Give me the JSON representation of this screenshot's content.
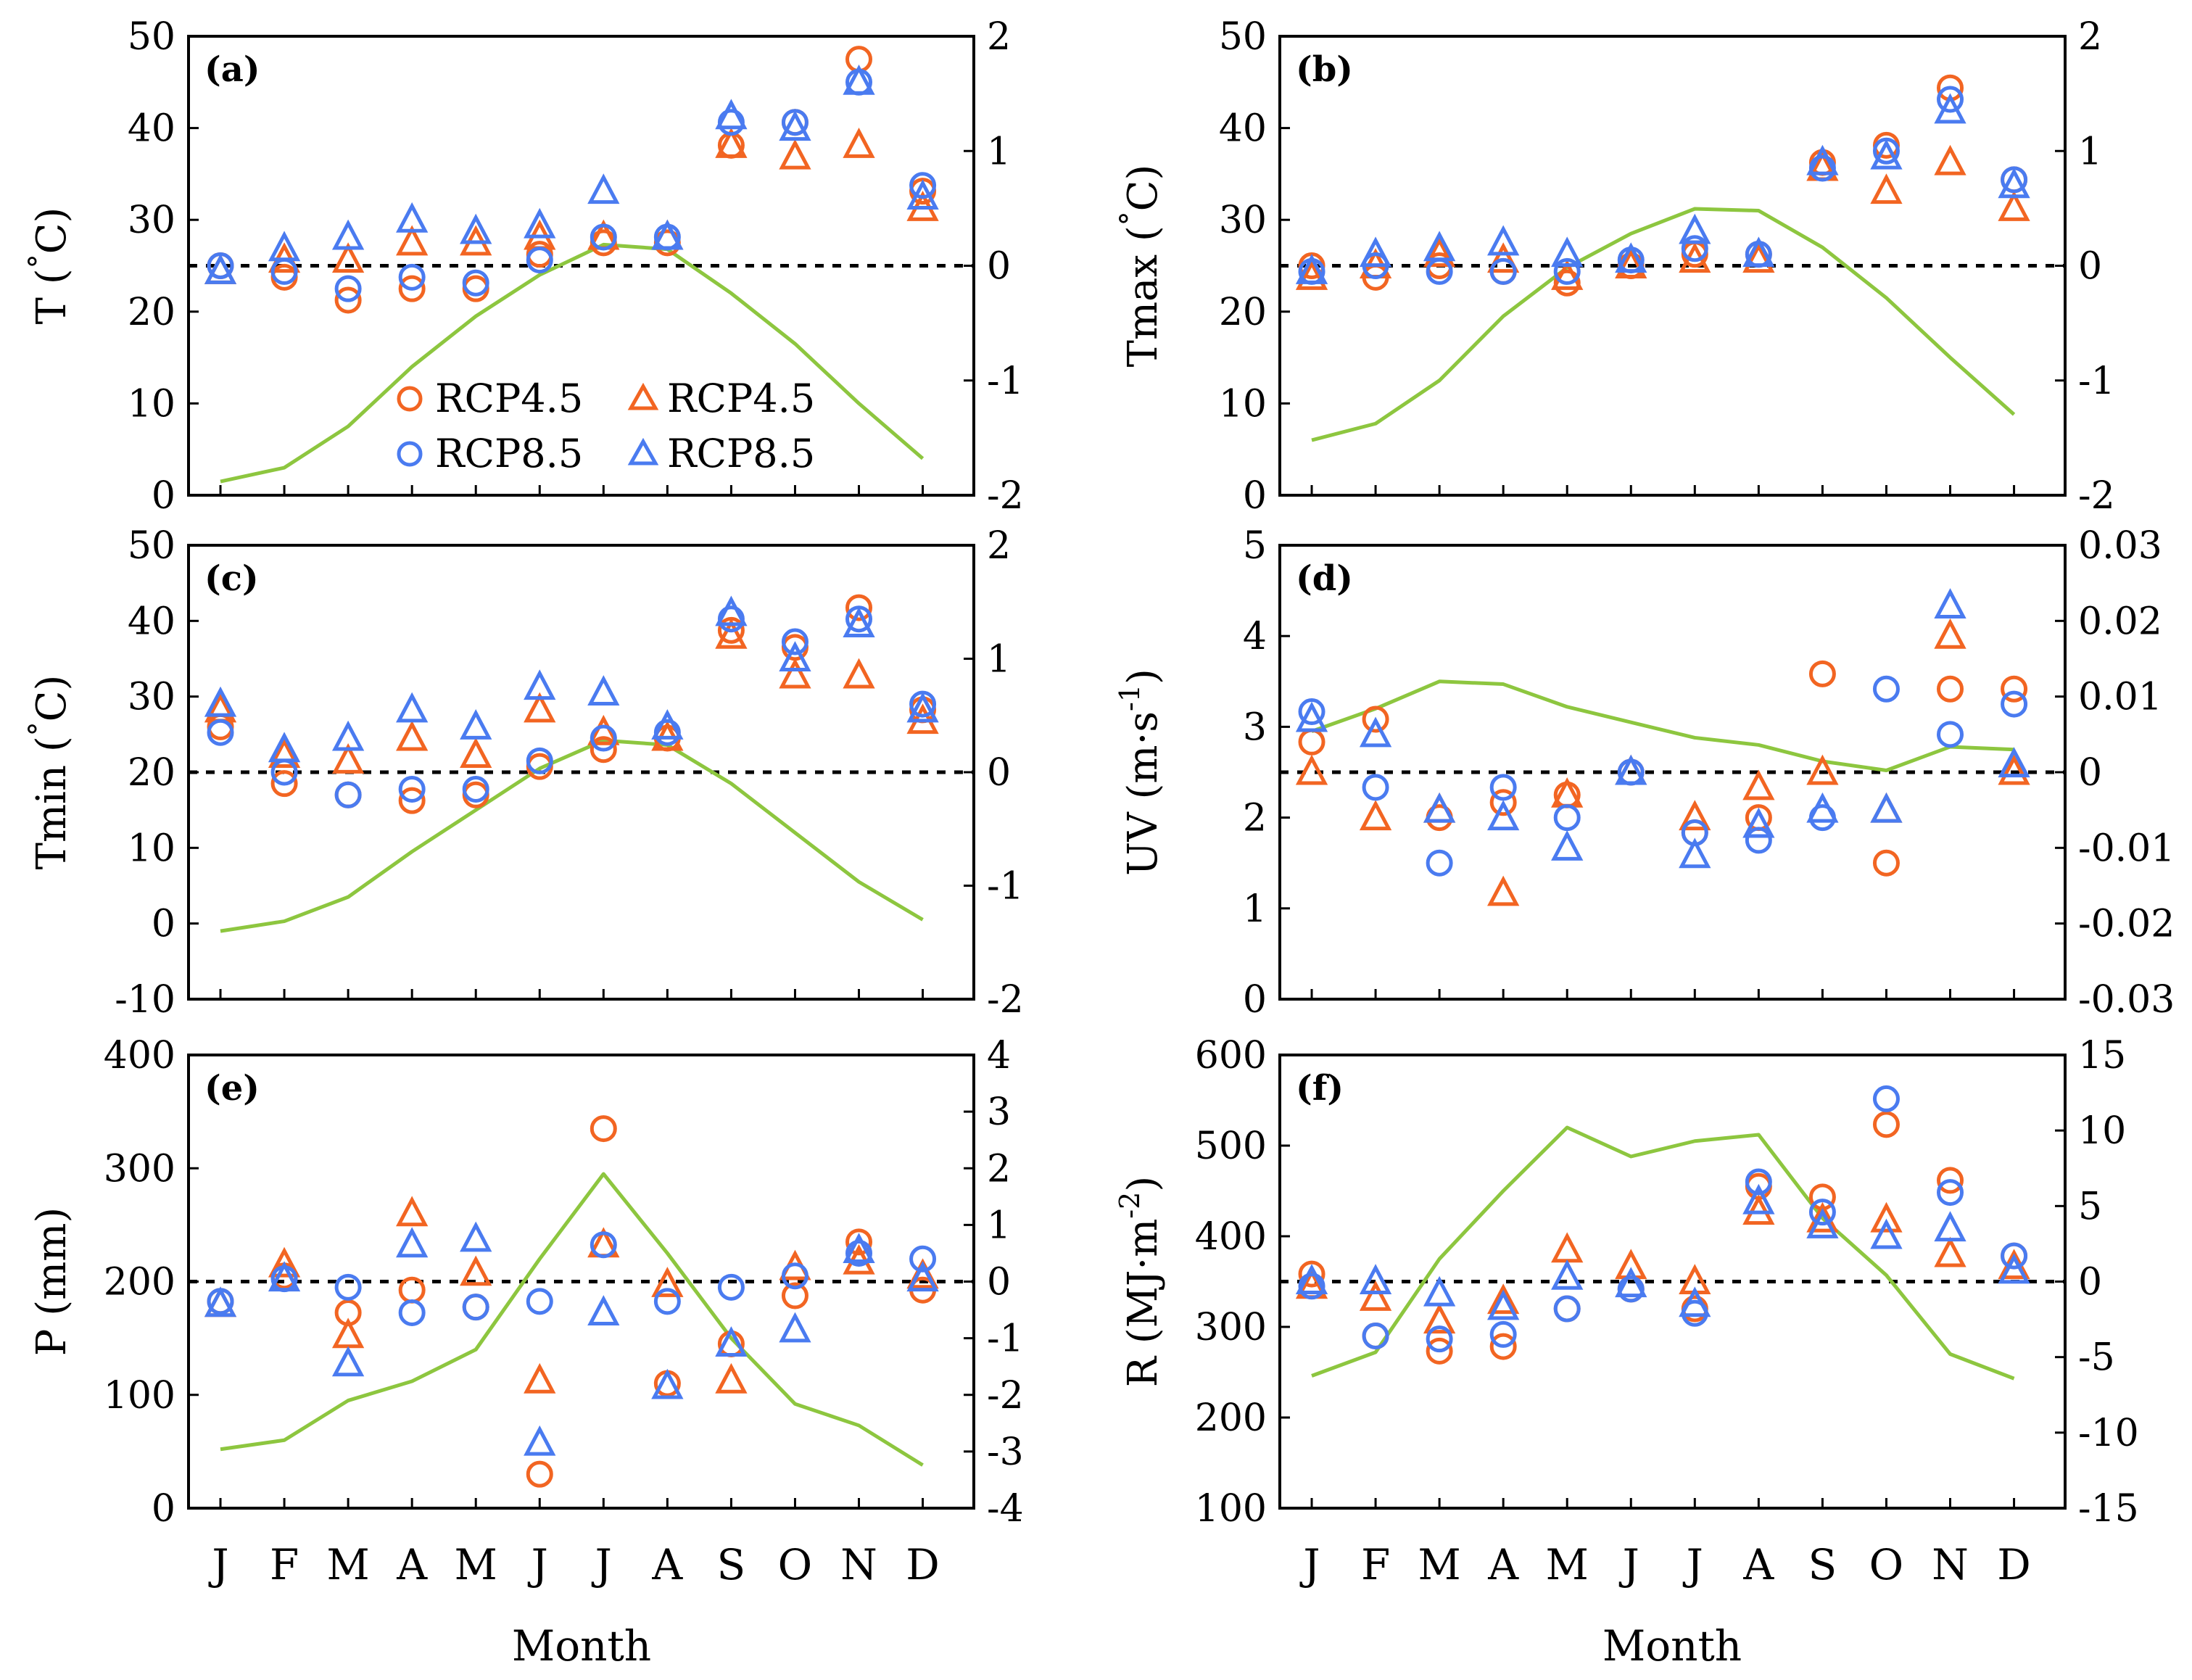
{
  "figure": {
    "x_axis_title": "Month",
    "months": [
      "J",
      "F",
      "M",
      "A",
      "M",
      "J",
      "J",
      "A",
      "S",
      "O",
      "N",
      "D"
    ]
  },
  "legend": {
    "entries": [
      {
        "marker": "circle",
        "color": "orange",
        "label": "RCP4.5"
      },
      {
        "marker": "triangle",
        "color": "orange",
        "label": "RCP4.5"
      },
      {
        "marker": "circle",
        "color": "blue",
        "label": "RCP8.5"
      },
      {
        "marker": "triangle",
        "color": "blue",
        "label": "RCP8.5"
      }
    ]
  },
  "colors": {
    "rcp45": "#F26522",
    "rcp85": "#4A7BF0",
    "baseline": "#8DC63F",
    "zero_line": "#000000",
    "frame": "#000000"
  },
  "chart_data": [
    {
      "panel": "(a)",
      "type": "scatter",
      "ylabel_main": "T (",
      "ylabel_unit": "°",
      "ylabel_rest": "C)",
      "ylim_left": [
        0,
        50
      ],
      "ylim_right": [
        -2,
        2
      ],
      "yticks_left": [
        "0",
        "10",
        "20",
        "30",
        "40",
        "50"
      ],
      "yticks_right": [
        "-2",
        "-1",
        "0",
        "1",
        "2"
      ],
      "baseline_left": [
        1.5,
        3,
        7.5,
        14,
        19.5,
        24,
        27.3,
        26.8,
        22,
        16.5,
        10,
        4
      ],
      "rcp45_circle": [
        0.0,
        -0.1,
        -0.3,
        -0.2,
        -0.2,
        0.1,
        0.2,
        0.2,
        1.05,
        1.25,
        1.8,
        0.65
      ],
      "rcp45_triangle": [
        -0.05,
        0.05,
        0.05,
        0.2,
        0.2,
        0.25,
        0.25,
        0.25,
        1.05,
        0.95,
        1.05,
        0.5
      ],
      "rcp85_circle": [
        0.0,
        -0.05,
        -0.2,
        -0.1,
        -0.15,
        0.05,
        0.25,
        0.25,
        1.25,
        1.25,
        1.6,
        0.7
      ],
      "rcp85_triangle": [
        -0.05,
        0.15,
        0.25,
        0.4,
        0.3,
        0.35,
        0.65,
        0.25,
        1.3,
        1.2,
        1.6,
        0.6
      ]
    },
    {
      "panel": "(b)",
      "type": "scatter",
      "ylabel_main": "Tmax (",
      "ylabel_unit": "°",
      "ylabel_rest": "C)",
      "ylim_left": [
        0,
        50
      ],
      "ylim_right": [
        -2,
        2
      ],
      "yticks_left": [
        "0",
        "10",
        "20",
        "30",
        "40",
        "50"
      ],
      "yticks_right": [
        "-2",
        "-1",
        "0",
        "1",
        "2"
      ],
      "baseline_left": [
        6,
        7.8,
        12.5,
        19.5,
        24.8,
        28.5,
        31.2,
        31,
        27,
        21.5,
        15,
        8.8
      ],
      "rcp45_circle": [
        0.0,
        -0.1,
        0.0,
        -0.05,
        -0.15,
        0.0,
        0.1,
        0.1,
        0.9,
        1.05,
        1.55,
        0.75
      ],
      "rcp45_triangle": [
        -0.1,
        0.0,
        0.1,
        0.05,
        -0.1,
        0.0,
        0.05,
        0.05,
        0.85,
        0.65,
        0.9,
        0.5
      ],
      "rcp85_circle": [
        -0.05,
        0.0,
        -0.05,
        -0.05,
        -0.05,
        0.05,
        0.15,
        0.1,
        0.85,
        1.0,
        1.45,
        0.75
      ],
      "rcp85_triangle": [
        -0.05,
        0.1,
        0.15,
        0.2,
        0.1,
        0.05,
        0.3,
        0.1,
        0.9,
        0.95,
        1.35,
        0.7
      ]
    },
    {
      "panel": "(c)",
      "type": "scatter",
      "ylabel_main": "Tmin (",
      "ylabel_unit": "°",
      "ylabel_rest": "C)",
      "ylim_left": [
        -10,
        50
      ],
      "ylim_right": [
        -2,
        2
      ],
      "yticks_left": [
        "-10",
        "0",
        "10",
        "20",
        "30",
        "40",
        "50"
      ],
      "yticks_right": [
        "-2",
        "-1",
        "0",
        "1",
        "2"
      ],
      "baseline_left": [
        -1,
        0.3,
        3.5,
        9.5,
        15,
        20.5,
        24.2,
        23.6,
        18.5,
        12,
        5.5,
        0.5
      ],
      "rcp45_circle": [
        0.4,
        -0.1,
        -0.2,
        -0.25,
        -0.2,
        0.05,
        0.2,
        0.3,
        1.25,
        1.1,
        1.45,
        0.55
      ],
      "rcp45_triangle": [
        0.55,
        0.15,
        0.1,
        0.3,
        0.15,
        0.55,
        0.35,
        0.3,
        1.2,
        0.85,
        0.85,
        0.45
      ],
      "rcp85_circle": [
        0.35,
        0.0,
        -0.2,
        -0.15,
        -0.15,
        0.1,
        0.3,
        0.35,
        1.35,
        1.15,
        1.35,
        0.6
      ],
      "rcp85_triangle": [
        0.6,
        0.2,
        0.3,
        0.55,
        0.4,
        0.75,
        0.7,
        0.4,
        1.4,
        1.0,
        1.3,
        0.55
      ]
    },
    {
      "panel": "(d)",
      "type": "scatter",
      "ylabel_main": "UV (m·s",
      "ylabel_sup": "-1",
      "ylabel_rest": ")",
      "ylim_left": [
        0,
        5
      ],
      "ylim_right": [
        -0.03,
        0.03
      ],
      "yticks_left": [
        "0",
        "1",
        "2",
        "3",
        "4",
        "5"
      ],
      "yticks_right": [
        "-0.03",
        "-0.02",
        "-0.01",
        "0",
        "0.01",
        "0.02",
        "0.03"
      ],
      "baseline_left": [
        2.95,
        3.2,
        3.5,
        3.47,
        3.22,
        3.05,
        2.88,
        2.8,
        2.62,
        2.52,
        2.78,
        2.75
      ],
      "rcp45_circle": [
        0.004,
        0.007,
        -0.006,
        -0.004,
        -0.003,
        0.0,
        -0.008,
        -0.006,
        0.013,
        -0.012,
        0.011,
        0.011
      ],
      "rcp45_triangle": [
        0.0,
        -0.006,
        -0.005,
        -0.016,
        -0.003,
        0.0,
        -0.006,
        -0.002,
        0.0,
        -0.005,
        0.018,
        0.0
      ],
      "rcp85_circle": [
        0.008,
        -0.002,
        -0.012,
        -0.002,
        -0.006,
        0.0,
        -0.008,
        -0.009,
        -0.006,
        0.011,
        0.005,
        0.009
      ],
      "rcp85_triangle": [
        0.007,
        0.005,
        -0.005,
        -0.006,
        -0.01,
        0.0,
        -0.011,
        -0.007,
        -0.005,
        -0.005,
        0.022,
        0.001
      ]
    },
    {
      "panel": "(e)",
      "type": "scatter",
      "ylabel_main": "P (mm)",
      "ylim_left": [
        0,
        400
      ],
      "ylim_right": [
        -4,
        4
      ],
      "yticks_left": [
        "0",
        "100",
        "200",
        "300",
        "400"
      ],
      "yticks_right": [
        "-4",
        "-3",
        "-2",
        "-1",
        "0",
        "1",
        "2",
        "3",
        "4"
      ],
      "baseline_left": [
        52,
        60,
        95,
        112,
        140,
        220,
        295,
        225,
        150,
        92,
        73,
        38
      ],
      "rcp45_circle": [
        -0.35,
        0.1,
        -0.55,
        -0.15,
        -0.45,
        -3.4,
        2.7,
        -1.8,
        -1.1,
        -0.25,
        0.7,
        -0.15
      ],
      "rcp45_triangle": [
        -0.4,
        0.3,
        -0.95,
        1.2,
        0.15,
        -1.75,
        0.65,
        -0.05,
        -1.75,
        0.25,
        0.35,
        0.1
      ],
      "rcp85_circle": [
        -0.35,
        0.05,
        -0.1,
        -0.55,
        -0.45,
        -0.35,
        0.65,
        -0.35,
        -0.1,
        0.1,
        0.5,
        0.4
      ],
      "rcp85_triangle": [
        -0.4,
        0.05,
        -1.45,
        0.65,
        0.75,
        -2.85,
        -0.55,
        -1.85,
        -1.1,
        -0.85,
        0.55,
        0.05
      ]
    },
    {
      "panel": "(f)",
      "type": "scatter",
      "ylabel_main": "R (MJ·m",
      "ylabel_sup": "-2",
      "ylabel_rest": ")",
      "ylim_left": [
        100,
        600
      ],
      "ylim_right": [
        -15,
        15
      ],
      "yticks_left": [
        "100",
        "200",
        "300",
        "400",
        "500",
        "600"
      ],
      "yticks_right": [
        "-15",
        "-10",
        "-5",
        "0",
        "5",
        "10",
        "15"
      ],
      "baseline_left": [
        246,
        272,
        375,
        450,
        520,
        488,
        505,
        512,
        420,
        357,
        270,
        243
      ],
      "rcp45_circle": [
        0.5,
        -3.6,
        -4.6,
        -4.3,
        -1.8,
        -0.5,
        -1.8,
        6.3,
        5.6,
        10.4,
        6.7,
        1.7
      ],
      "rcp45_triangle": [
        -0.3,
        -1.1,
        -2.6,
        -1.3,
        2.1,
        1.0,
        0.0,
        4.6,
        4.1,
        4.1,
        1.8,
        1.0
      ],
      "rcp85_circle": [
        -0.3,
        -3.6,
        -3.8,
        -3.5,
        -1.8,
        -0.5,
        -2.1,
        6.6,
        4.6,
        12.1,
        5.9,
        1.7
      ],
      "rcp85_triangle": [
        0.0,
        0.0,
        -0.8,
        -1.7,
        0.3,
        -0.2,
        -1.5,
        5.3,
        3.7,
        3.0,
        3.5,
        0.7
      ]
    }
  ]
}
